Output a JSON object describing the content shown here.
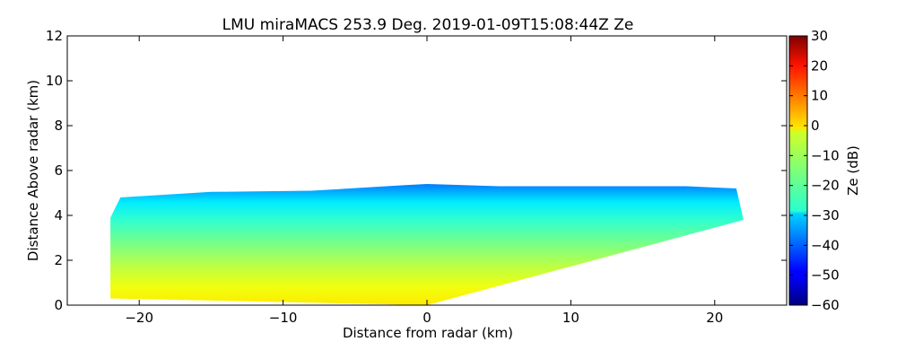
{
  "chart_data": {
    "type": "heatmap",
    "title": "LMU miraMACS 253.9 Deg. 2019-01-09T15:08:44Z  Ze",
    "xlabel": "Distance from radar (km)",
    "ylabel": "Distance Above radar  (km)",
    "xlim": [
      -25,
      25
    ],
    "ylim": [
      0,
      12
    ],
    "x_ticks": [
      -20,
      -10,
      0,
      10,
      20
    ],
    "y_ticks": [
      0,
      2,
      4,
      6,
      8,
      10,
      12
    ],
    "grid": false,
    "colorbar": {
      "label": "Ze (dB)",
      "range": [
        -60,
        30
      ],
      "ticks": [
        30,
        20,
        10,
        0,
        -10,
        -20,
        -30,
        -40,
        -50,
        -60
      ],
      "colormap": "jet"
    },
    "echo_region": {
      "outline": [
        [
          -22,
          0.3
        ],
        [
          -22,
          3.9
        ],
        [
          -21.3,
          4.8
        ],
        [
          -15,
          5.05
        ],
        [
          -8,
          5.1
        ],
        [
          -1.5,
          5.35
        ],
        [
          0,
          5.4
        ],
        [
          5,
          5.3
        ],
        [
          12,
          5.3
        ],
        [
          18,
          5.3
        ],
        [
          21.5,
          5.2
        ],
        [
          22,
          3.8
        ],
        [
          0,
          0
        ]
      ],
      "ze_by_height": [
        [
          0,
          -2
        ],
        [
          0.8,
          -5
        ],
        [
          1.8,
          -10
        ],
        [
          2.8,
          -16
        ],
        [
          3.8,
          -22
        ],
        [
          4.6,
          -28
        ],
        [
          5.1,
          -34
        ],
        [
          5.4,
          -38
        ]
      ]
    }
  }
}
